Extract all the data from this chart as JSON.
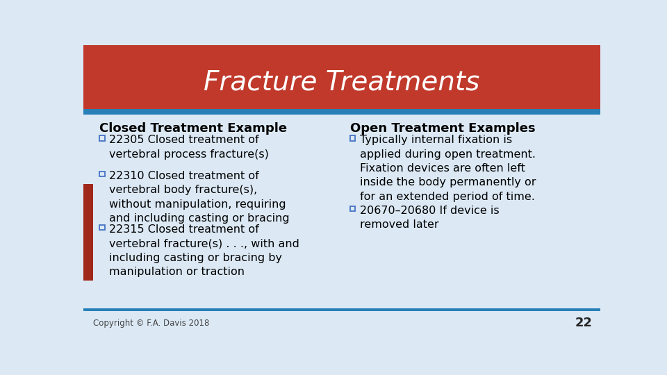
{
  "title": "Fracture Treatments",
  "title_color": "#FFFFFF",
  "title_bg_color": "#C0392B",
  "title_bg_color2": "#8B2010",
  "header_bar_color": "#2980B9",
  "content_bg_color": "#DCE9F5",
  "bg_color": "#DCE9F5",
  "left_heading": "Closed Treatment Example",
  "right_heading": "Open Treatment Examples",
  "heading_color": "#000000",
  "left_bullets": [
    "22305 Closed treatment of\nvertebral process fracture(s)",
    "22310 Closed treatment of\nvertebral body fracture(s),\nwithout manipulation, requiring\nand including casting or bracing",
    "22315 Closed treatment of\nvertebral fracture(s) . . ., with and\nincluding casting or bracing by\nmanipulation or traction"
  ],
  "right_bullets": [
    "Typically internal fixation is\napplied during open treatment.\nFixation devices are often left\ninside the body permanently or\nfor an extended period of time.",
    "20670–20680 If device is\nremoved later"
  ],
  "bullet_color": "#000000",
  "bullet_box_color": "#4472C4",
  "footer_text": "Copyright © F.A. Davis 2018",
  "footer_number": "22",
  "footer_line_color": "#2980B9",
  "red_sidebar_color": "#A0281A",
  "font_size_title": 28,
  "font_size_heading": 13,
  "font_size_bullet": 11.5,
  "font_size_footer": 8.5
}
